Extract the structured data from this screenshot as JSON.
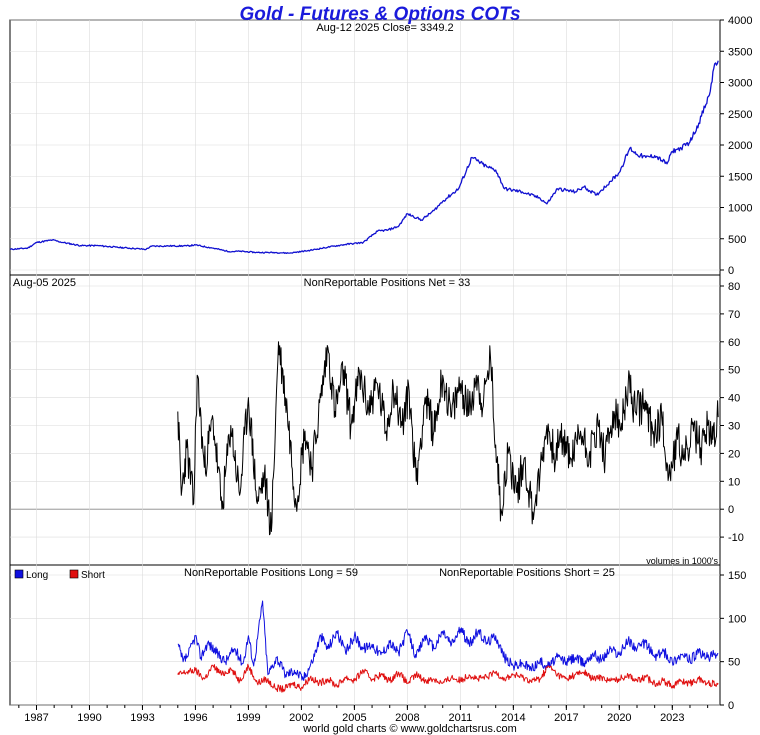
{
  "title": "Gold - Futures & Options COTs",
  "footer": "world gold charts © www.goldchartsrus.com",
  "colors": {
    "title": "#1a1adb",
    "price": "#1010d0",
    "net": "#000000",
    "long": "#1010e0",
    "short": "#e01010",
    "grid": "#dcdcdc",
    "frame": "#000000"
  },
  "chart_data": [
    {
      "panel": "price",
      "type": "line",
      "subtitle": "Aug-12  2025   Close= 3349.2",
      "ylim": [
        0,
        4000
      ],
      "yticks": [
        0,
        500,
        1000,
        1500,
        2000,
        2500,
        3000,
        3500,
        4000
      ],
      "grid": true,
      "series": [
        {
          "color": "#1010d0",
          "x": [
            1985.5,
            1986.5,
            1987.0,
            1987.9,
            1988.5,
            1989.5,
            1990.5,
            1991.5,
            1992.5,
            1993.2,
            1993.5,
            1994.5,
            1995.5,
            1996.0,
            1997.0,
            1997.9,
            1998.5,
            1999.5,
            2000.5,
            2001.3,
            2002.5,
            2003.5,
            2004.5,
            2005.5,
            2006.3,
            2006.9,
            2007.5,
            2008.0,
            2008.8,
            2009.5,
            2010.0,
            2010.9,
            2011.65,
            2012.5,
            2013.0,
            2013.5,
            2014.5,
            2015.5,
            2015.9,
            2016.5,
            2017.5,
            2018.0,
            2018.7,
            2019.0,
            2019.5,
            2020.0,
            2020.6,
            2021.0,
            2021.5,
            2022.0,
            2022.7,
            2023.0,
            2023.5,
            2024.0,
            2024.5,
            2024.9,
            2025.1,
            2025.4,
            2025.6
          ],
          "y": [
            330,
            350,
            440,
            480,
            440,
            390,
            390,
            365,
            345,
            330,
            380,
            385,
            385,
            400,
            350,
            295,
            300,
            280,
            280,
            270,
            315,
            365,
            410,
            440,
            620,
            640,
            700,
            900,
            800,
            950,
            1100,
            1300,
            1800,
            1650,
            1600,
            1300,
            1250,
            1150,
            1060,
            1300,
            1250,
            1330,
            1200,
            1280,
            1420,
            1560,
            1950,
            1850,
            1800,
            1830,
            1700,
            1900,
            1950,
            2050,
            2350,
            2650,
            2800,
            3300,
            3349
          ]
        }
      ]
    },
    {
      "panel": "net",
      "type": "line",
      "date_label": "Aug-05  2025",
      "subtitle": "NonReportable Positions Net = 33",
      "note": "volumes in 1000's",
      "ylim": [
        -20,
        80
      ],
      "yticks": [
        -10,
        0,
        10,
        20,
        30,
        40,
        50,
        60,
        70,
        80
      ],
      "grid": true,
      "series": [
        {
          "color": "#000000",
          "x": [
            1995.0,
            1995.2,
            1995.5,
            1995.9,
            1996.1,
            1996.5,
            1997.0,
            1997.5,
            1998.0,
            1998.5,
            1999.0,
            1999.5,
            1999.9,
            2000.3,
            2000.7,
            2001.2,
            2001.7,
            2002.2,
            2002.6,
            2003.1,
            2003.5,
            2003.9,
            2004.4,
            2004.8,
            2005.3,
            2005.8,
            2006.3,
            2006.8,
            2007.2,
            2007.7,
            2008.1,
            2008.5,
            2009.0,
            2009.5,
            2010.0,
            2010.5,
            2011.0,
            2011.5,
            2011.9,
            2012.3,
            2012.7,
            2013.0,
            2013.3,
            2013.7,
            2014.2,
            2014.6,
            2015.1,
            2015.5,
            2015.9,
            2016.3,
            2016.8,
            2017.3,
            2017.8,
            2018.3,
            2018.8,
            2019.2,
            2019.7,
            2020.1,
            2020.5,
            2020.9,
            2021.4,
            2021.9,
            2022.4,
            2022.8,
            2023.3,
            2023.7,
            2024.2,
            2024.6,
            2025.0,
            2025.3,
            2025.6
          ],
          "y": [
            35,
            5,
            22,
            2,
            48,
            15,
            32,
            0,
            30,
            5,
            40,
            2,
            12,
            -8,
            60,
            35,
            2,
            28,
            15,
            40,
            58,
            35,
            50,
            30,
            48,
            36,
            45,
            28,
            44,
            30,
            42,
            10,
            40,
            28,
            48,
            33,
            45,
            35,
            48,
            37,
            55,
            23,
            0,
            20,
            6,
            18,
            -1,
            12,
            30,
            20,
            25,
            18,
            28,
            20,
            30,
            18,
            35,
            28,
            45,
            35,
            38,
            27,
            33,
            12,
            25,
            18,
            28,
            22,
            30,
            25,
            33
          ]
        }
      ]
    },
    {
      "panel": "long_short",
      "type": "line",
      "subtitle_long": "NonReportable Positions Long = 59",
      "subtitle_short": "NonReportable Positions Short = 25",
      "legend": [
        "Long",
        "Short"
      ],
      "legend_position": "top-left",
      "ylim": [
        0,
        150
      ],
      "yticks": [
        0,
        50,
        100,
        150
      ],
      "xticks": [
        "1987",
        "1990",
        "1993",
        "1996",
        "1999",
        "2002",
        "2005",
        "2008",
        "2011",
        "2014",
        "2017",
        "2020",
        "2023"
      ],
      "xtick_values": [
        1987,
        1990,
        1993,
        1996,
        1999,
        2002,
        2005,
        2008,
        2011,
        2014,
        2017,
        2020,
        2023
      ],
      "xlim": [
        1985.5,
        2025.7
      ],
      "grid": true,
      "series": [
        {
          "name": "Long",
          "color": "#1010e0",
          "x": [
            1995.0,
            1995.3,
            1995.6,
            1996.0,
            1996.3,
            1996.7,
            1997.2,
            1997.7,
            1998.2,
            1998.7,
            1999.0,
            1999.3,
            1999.8,
            2000.1,
            2000.6,
            2001.1,
            2001.6,
            2002.1,
            2002.6,
            2003.1,
            2003.5,
            2004.0,
            2004.5,
            2005.0,
            2005.5,
            2006.0,
            2006.5,
            2007.0,
            2007.5,
            2008.0,
            2008.5,
            2009.0,
            2009.5,
            2010.0,
            2010.5,
            2011.0,
            2011.5,
            2012.0,
            2012.5,
            2013.0,
            2013.5,
            2014.0,
            2014.5,
            2015.0,
            2015.5,
            2016.0,
            2016.5,
            2017.0,
            2017.5,
            2018.0,
            2018.5,
            2019.0,
            2019.5,
            2020.0,
            2020.5,
            2021.0,
            2021.5,
            2022.0,
            2022.5,
            2023.0,
            2023.5,
            2024.0,
            2024.5,
            2025.0,
            2025.6
          ],
          "y": [
            70,
            50,
            58,
            80,
            55,
            72,
            60,
            50,
            65,
            48,
            80,
            45,
            120,
            35,
            55,
            35,
            40,
            30,
            50,
            80,
            65,
            85,
            60,
            80,
            65,
            70,
            58,
            72,
            60,
            85,
            55,
            80,
            65,
            85,
            70,
            88,
            70,
            85,
            72,
            80,
            55,
            45,
            48,
            42,
            50,
            45,
            55,
            50,
            55,
            48,
            60,
            52,
            65,
            58,
            75,
            65,
            72,
            55,
            62,
            50,
            58,
            52,
            60,
            55,
            59
          ]
        },
        {
          "name": "Short",
          "color": "#e01010",
          "x": [
            1995.0,
            1995.5,
            1996.0,
            1996.5,
            1997.0,
            1997.5,
            1998.0,
            1998.5,
            1999.0,
            1999.5,
            2000.0,
            2000.5,
            2001.0,
            2001.5,
            2002.0,
            2002.5,
            2003.0,
            2003.5,
            2004.0,
            2004.5,
            2005.0,
            2005.5,
            2006.0,
            2006.5,
            2007.0,
            2007.5,
            2008.0,
            2008.5,
            2009.0,
            2009.5,
            2010.0,
            2010.5,
            2011.0,
            2011.5,
            2012.0,
            2012.5,
            2013.0,
            2013.5,
            2014.0,
            2014.5,
            2015.0,
            2015.5,
            2016.0,
            2016.5,
            2017.0,
            2017.5,
            2018.0,
            2018.5,
            2019.0,
            2019.5,
            2020.0,
            2020.5,
            2021.0,
            2021.5,
            2022.0,
            2022.5,
            2023.0,
            2023.5,
            2024.0,
            2024.5,
            2025.0,
            2025.6
          ],
          "y": [
            35,
            38,
            40,
            30,
            45,
            35,
            42,
            28,
            45,
            25,
            30,
            20,
            18,
            25,
            20,
            32,
            25,
            30,
            22,
            32,
            28,
            40,
            30,
            35,
            28,
            38,
            25,
            35,
            28,
            30,
            25,
            32,
            28,
            35,
            30,
            32,
            38,
            30,
            35,
            32,
            28,
            30,
            45,
            35,
            30,
            35,
            38,
            30,
            32,
            28,
            30,
            35,
            28,
            32,
            25,
            28,
            22,
            28,
            25,
            30,
            25,
            25
          ]
        }
      ]
    }
  ]
}
